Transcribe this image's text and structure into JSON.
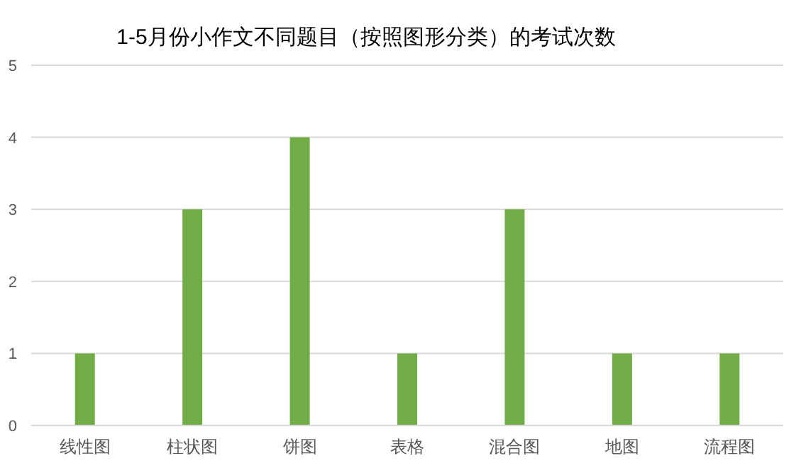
{
  "chart_data": {
    "type": "bar",
    "title": "1-5月份小作文不同题目（按照图形分类）的考试次数",
    "categories": [
      "线性图",
      "柱状图",
      "饼图",
      "表格",
      "混合图",
      "地图",
      "流程图"
    ],
    "values": [
      1,
      3,
      4,
      1,
      3,
      1,
      1
    ],
    "color": "#70ad47",
    "ylim": [
      0,
      5
    ],
    "yticks": [
      0,
      1,
      2,
      3,
      4,
      5
    ],
    "grid": "y"
  }
}
